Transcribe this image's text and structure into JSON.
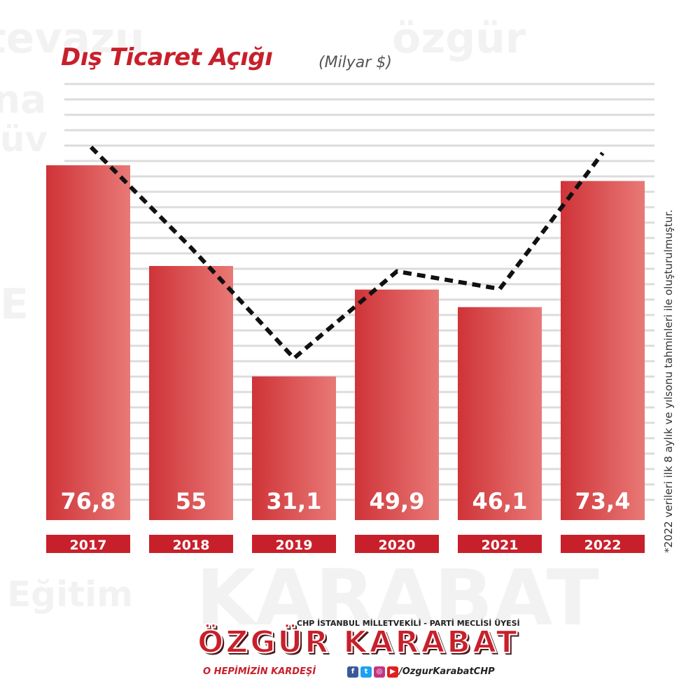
{
  "chart_data": {
    "type": "bar",
    "title": "Dış Ticaret Açığı",
    "unit": "(Milyar $)",
    "categories": [
      "2017",
      "2018",
      "2019",
      "2020",
      "2021",
      "2022"
    ],
    "values": [
      76.8,
      55,
      31.1,
      49.9,
      46.1,
      73.4
    ],
    "value_labels": [
      "76,8",
      "55",
      "31,1",
      "49,9",
      "46,1",
      "73,4"
    ],
    "trend_line": "dashed",
    "grid": true,
    "ylim": [
      0,
      100
    ],
    "bar_color": "#d9434a",
    "label_color": "#c8202b"
  },
  "footnote": "*2022 verileri ilk 8 aylık ve yılsonu tahminleri ile oluşturulmuştur.",
  "branding": {
    "line1": "CHP İSTANBUL MİLLETVEKİLİ - PARTİ MECLİSİ ÜYESİ",
    "name": "ÖZGÜR KARABAT",
    "line3": "O HEPİMİZİN KARDEŞİ",
    "handle": "/OzgurKarabatCHP",
    "social_icons": [
      "facebook-icon",
      "twitter-icon",
      "instagram-icon",
      "youtube-icon"
    ]
  },
  "colors": {
    "accent": "#c8202b",
    "bar": "#d9434a",
    "trend": "#111111"
  }
}
